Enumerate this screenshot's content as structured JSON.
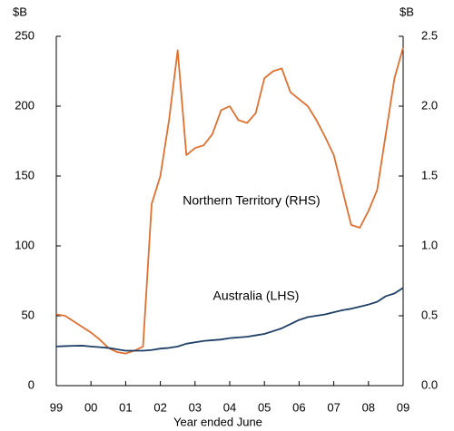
{
  "chart_data": {
    "type": "line",
    "y_unit_label": "$B",
    "y2_unit_label": "$B",
    "xlabel": "Year ended June",
    "annotations": [
      "Northern Territory (RHS)",
      "Australia (LHS)"
    ],
    "x": [
      1999,
      1999.25,
      1999.5,
      1999.75,
      2000,
      2000.25,
      2000.5,
      2000.75,
      2001,
      2001.25,
      2001.5,
      2001.75,
      2002,
      2002.25,
      2002.5,
      2002.75,
      2003,
      2003.25,
      2003.5,
      2003.75,
      2004,
      2004.25,
      2004.5,
      2004.75,
      2005,
      2005.25,
      2005.5,
      2005.75,
      2006,
      2006.25,
      2006.5,
      2006.75,
      2007,
      2007.25,
      2007.5,
      2007.75,
      2008,
      2008.25,
      2008.5,
      2008.75,
      2009
    ],
    "xlim": [
      1999,
      2009
    ],
    "xticks": [
      {
        "value": 1999,
        "label": "99"
      },
      {
        "value": 2000,
        "label": "00"
      },
      {
        "value": 2001,
        "label": "01"
      },
      {
        "value": 2002,
        "label": "02"
      },
      {
        "value": 2003,
        "label": "03"
      },
      {
        "value": 2004,
        "label": "04"
      },
      {
        "value": 2005,
        "label": "05"
      },
      {
        "value": 2006,
        "label": "06"
      },
      {
        "value": 2007,
        "label": "07"
      },
      {
        "value": 2008,
        "label": "08"
      },
      {
        "value": 2009,
        "label": "09"
      }
    ],
    "ylim": [
      0,
      250
    ],
    "yticks": [
      0,
      50,
      100,
      150,
      200,
      250
    ],
    "y2lim": [
      0,
      2.5
    ],
    "y2ticks": [
      {
        "value": 0,
        "label": "0.0"
      },
      {
        "value": 0.5,
        "label": "0.5"
      },
      {
        "value": 1,
        "label": "1.0"
      },
      {
        "value": 1.5,
        "label": "1.5"
      },
      {
        "value": 2,
        "label": "2.0"
      },
      {
        "value": 2.5,
        "label": "2.5"
      }
    ],
    "series": [
      {
        "name": "Northern Territory (RHS)",
        "color": "#e07030",
        "axis": "y2",
        "values": [
          0.51,
          0.5,
          0.46,
          0.42,
          0.38,
          0.33,
          0.27,
          0.24,
          0.23,
          0.25,
          0.28,
          1.3,
          1.5,
          1.9,
          2.4,
          1.65,
          1.7,
          1.72,
          1.8,
          1.97,
          2.0,
          1.9,
          1.88,
          1.95,
          2.2,
          2.25,
          2.27,
          2.1,
          2.05,
          2.0,
          1.9,
          1.78,
          1.65,
          1.4,
          1.15,
          1.13,
          1.25,
          1.4,
          1.8,
          2.2,
          2.42
        ]
      },
      {
        "name": "Australia (LHS)",
        "color": "#1f3f66",
        "axis": "y",
        "values": [
          28,
          28.3,
          28.5,
          28.6,
          28,
          27.5,
          27,
          26,
          25,
          25,
          25,
          25.5,
          26.5,
          27,
          28,
          30,
          31,
          32,
          32.5,
          33,
          34,
          34.5,
          35,
          36,
          37,
          39,
          41,
          44,
          47,
          49,
          50,
          51,
          52.5,
          54,
          55,
          56.5,
          58,
          60,
          64,
          66,
          70
        ]
      }
    ]
  }
}
